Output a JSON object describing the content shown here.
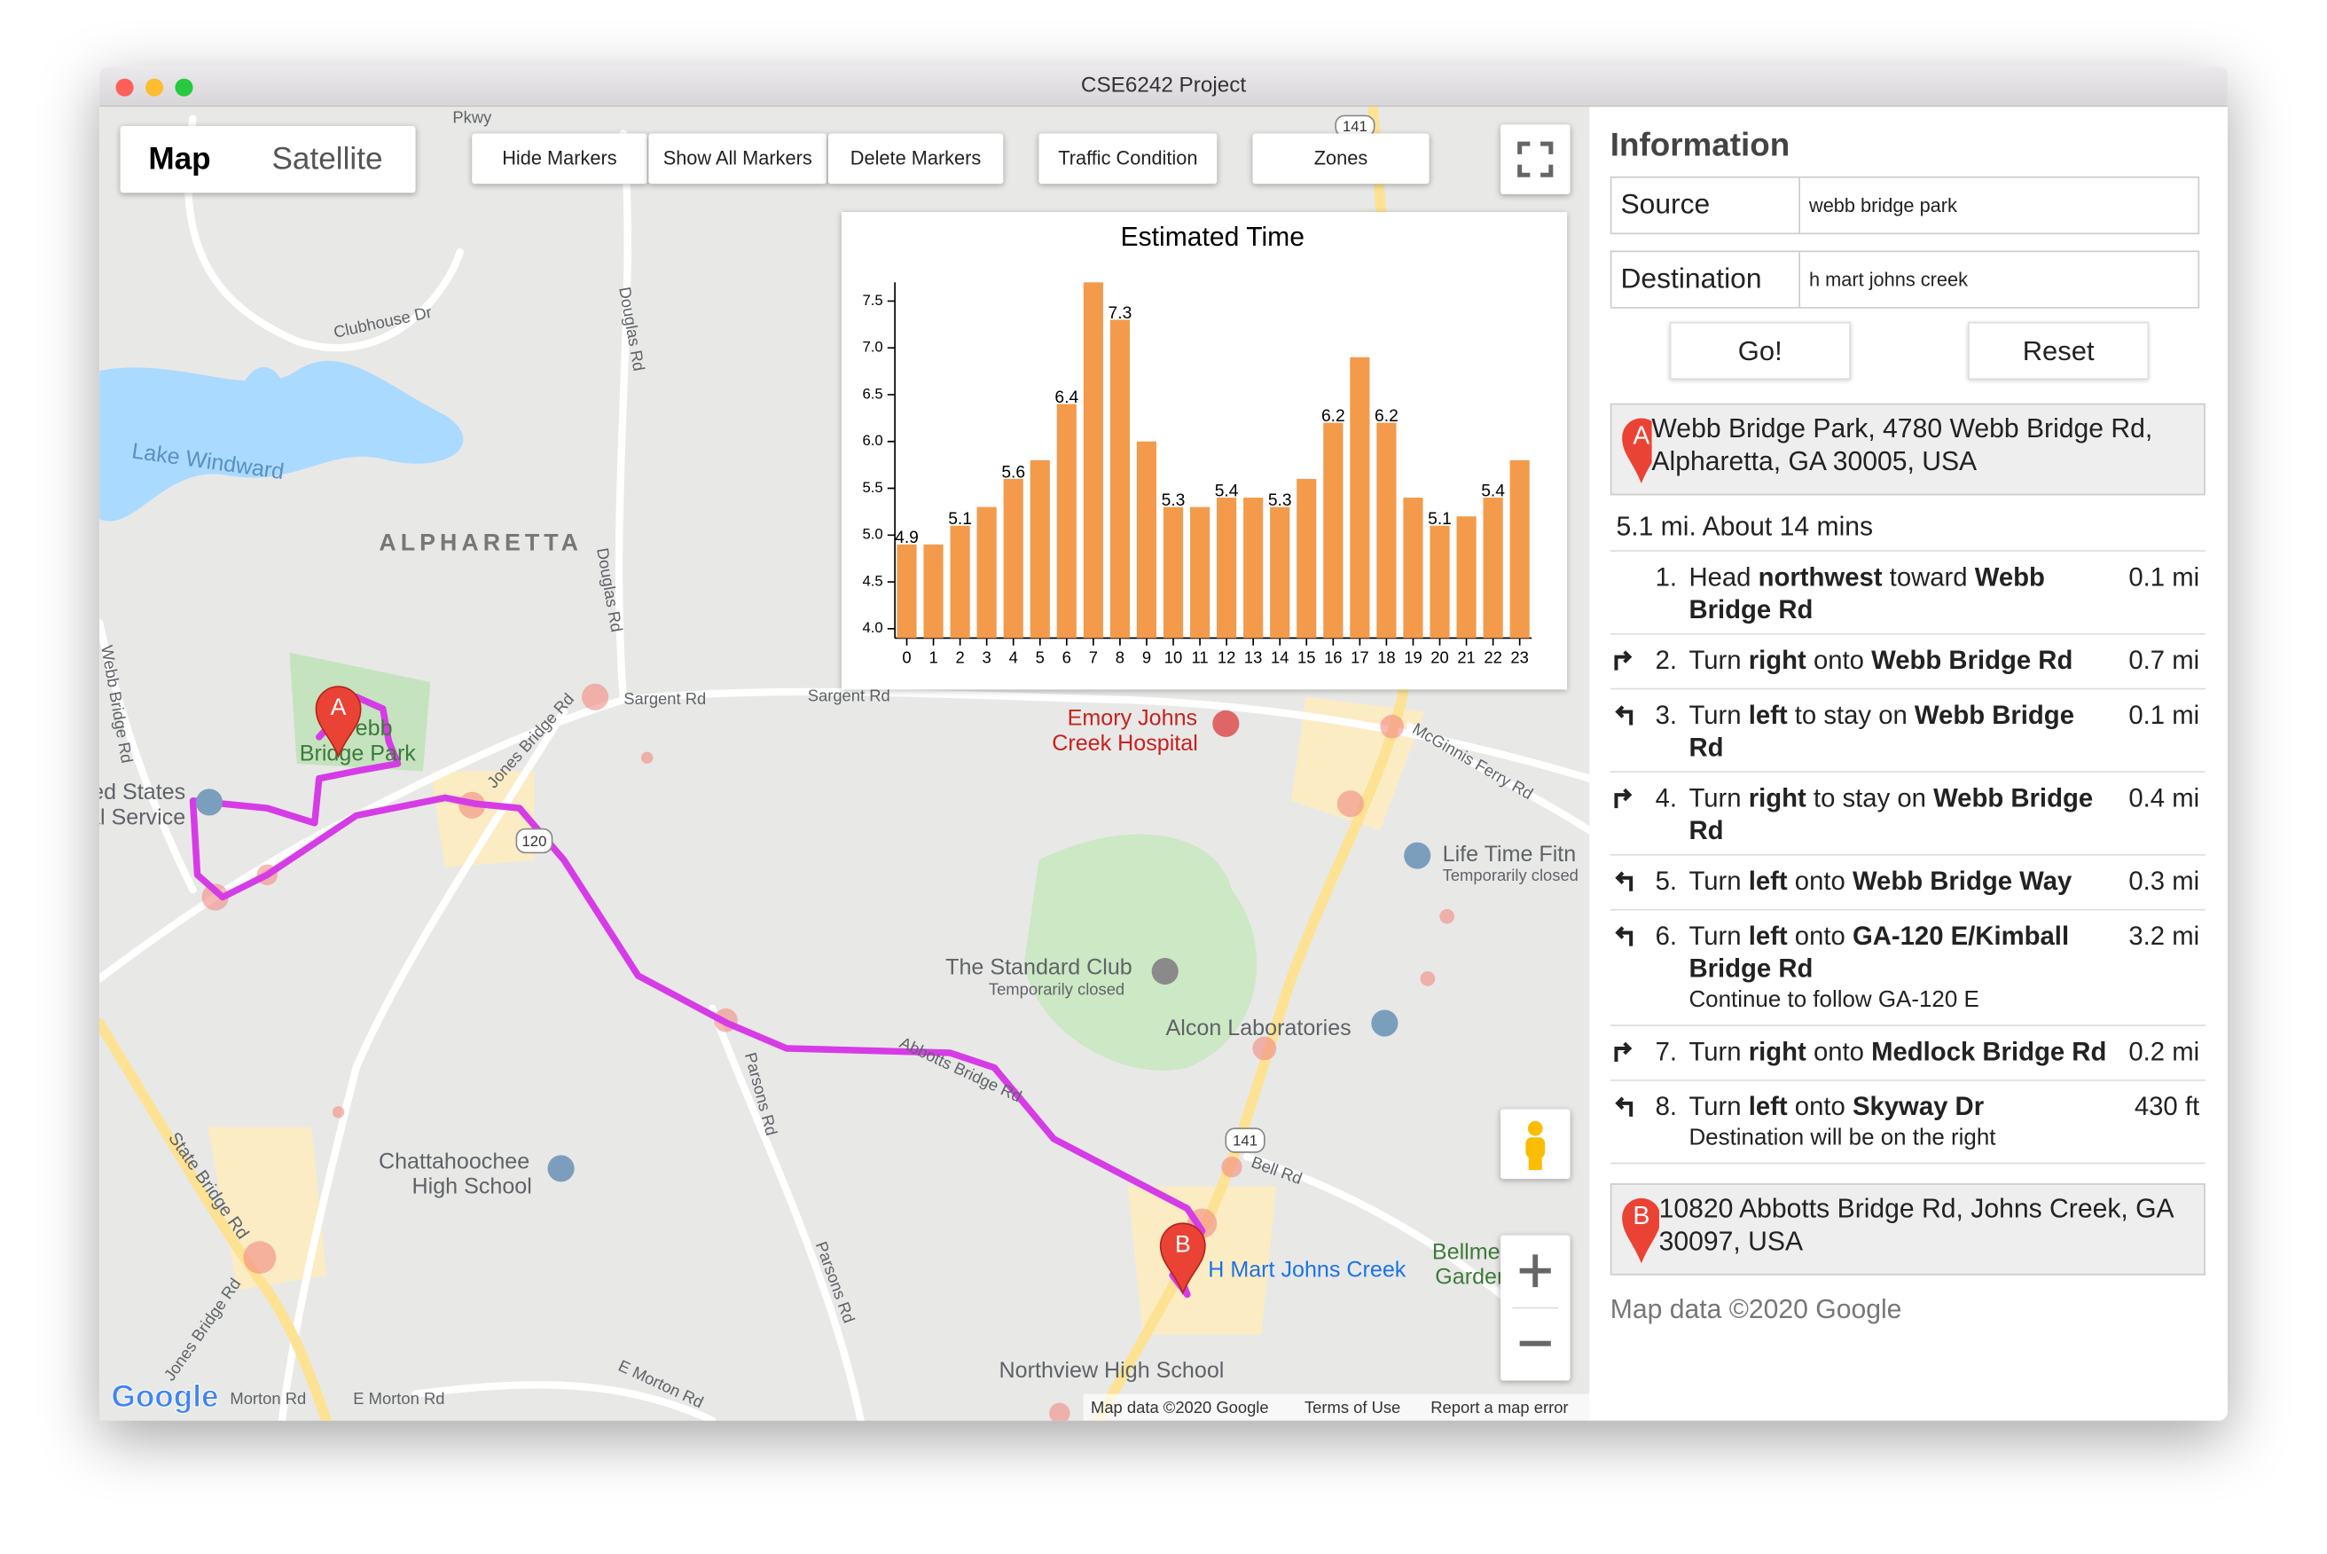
{
  "window": {
    "title": "CSE6242 Project"
  },
  "map_controls": {
    "map_type": [
      "Map",
      "Satellite"
    ],
    "buttons": [
      "Hide Markers",
      "Show All Markers",
      "Delete Markers",
      "Traffic Condition",
      "Zones"
    ]
  },
  "map": {
    "labels": [
      "Lake Windward",
      "ALPHARETTA",
      "Clubhouse Dr",
      "Sargent Rd",
      "Sargent Rd",
      "Douglas Rd",
      "Douglas Rd",
      "Jones Bridge Rd",
      "Webb Bridge Rd",
      "Emory Johns",
      "Creek Hospital",
      "McGinnis Ferry Rd",
      "Life Time Fitn",
      "Temporarily closed",
      "The Standard Club",
      "Temporarily closed",
      "Alcon Laboratories",
      "Chattahoochee",
      "High School",
      "Parsons Rd",
      "Parsons Rd",
      "Abbotts Bridge Rd",
      "Bell Rd",
      "H Mart Johns Creek",
      "Northview High School",
      "State Bridge Rd",
      "Jones Bridge Rd",
      "Morton Rd",
      "E Morton Rd",
      "E Morton Rd",
      "Webb",
      "Bridge Park",
      "United States",
      "Postal Service",
      "Bellmere",
      "Garden",
      "Pkwy"
    ],
    "shields": [
      "141",
      "120",
      "141"
    ],
    "markers": [
      "A",
      "B"
    ],
    "logo": "Google",
    "attribution": [
      "Map data ©2020 Google",
      "Terms of Use",
      "Report a map error"
    ]
  },
  "chart_data": {
    "type": "bar",
    "title": "Estimated Time",
    "categories": [
      "0",
      "1",
      "2",
      "3",
      "4",
      "5",
      "6",
      "7",
      "8",
      "9",
      "10",
      "11",
      "12",
      "13",
      "14",
      "15",
      "16",
      "17",
      "18",
      "19",
      "20",
      "21",
      "22",
      "23"
    ],
    "values": [
      4.9,
      4.9,
      5.1,
      5.3,
      5.6,
      5.8,
      6.4,
      7.7,
      7.3,
      6.0,
      5.3,
      5.3,
      5.4,
      5.4,
      5.3,
      5.6,
      6.2,
      6.9,
      6.2,
      5.4,
      5.1,
      5.2,
      5.4,
      5.8
    ],
    "value_labels": [
      "4.9",
      null,
      "5.1",
      null,
      "5.6",
      null,
      "6.4",
      null,
      "7.3",
      null,
      "5.3",
      null,
      "5.4",
      null,
      "5.3",
      null,
      "6.2",
      null,
      "6.2",
      null,
      "5.1",
      null,
      "5.4",
      null
    ],
    "color": "#f39a4b",
    "ylim": [
      3.9,
      7.7
    ],
    "yticks": [
      {
        "value": 4,
        "label": "4.0"
      },
      4.5,
      {
        "value": 5,
        "label": "5.0"
      },
      5.5,
      {
        "value": 6,
        "label": "6.0"
      },
      6.5,
      {
        "value": 7,
        "label": "7.0"
      },
      7.5
    ],
    "grid": false
  },
  "panel": {
    "title": "Information",
    "source": {
      "label": "Source",
      "value": "webb bridge park"
    },
    "destination": {
      "label": "Destination",
      "value": "h mart johns creek"
    },
    "buttons": [
      "Go!",
      "Reset"
    ],
    "start": {
      "marker": "A",
      "address": "Webb Bridge Park, 4780 Webb Bridge Rd, Alpharetta, GA 30005, USA"
    },
    "summary": "5.1 mi. About 14 mins",
    "steps": [
      {
        "icon": null,
        "num": "1.",
        "segments": [
          "Head ",
          "northwest",
          " toward ",
          "Webb Bridge Rd"
        ],
        "note": null,
        "distance": "0.1 mi"
      },
      {
        "icon": "right",
        "num": "2.",
        "segments": [
          "Turn ",
          "right",
          " onto ",
          "Webb Bridge Rd"
        ],
        "note": null,
        "distance": "0.7 mi"
      },
      {
        "icon": "left",
        "num": "3.",
        "segments": [
          "Turn ",
          "left",
          " to stay on ",
          "Webb Bridge Rd"
        ],
        "note": null,
        "distance": "0.1 mi"
      },
      {
        "icon": "right",
        "num": "4.",
        "segments": [
          "Turn ",
          "right",
          " to stay on ",
          "Webb Bridge Rd"
        ],
        "note": null,
        "distance": "0.4 mi"
      },
      {
        "icon": "left",
        "num": "5.",
        "segments": [
          "Turn ",
          "left",
          " onto ",
          "Webb Bridge Way"
        ],
        "note": null,
        "distance": "0.3 mi"
      },
      {
        "icon": "left",
        "num": "6.",
        "segments": [
          "Turn ",
          "left",
          " onto ",
          "GA-120 E/Kimball Bridge Rd"
        ],
        "note": "Continue to follow GA-120 E",
        "distance": "3.2 mi"
      },
      {
        "icon": "right",
        "num": "7.",
        "segments": [
          "Turn ",
          "right",
          " onto ",
          "Medlock Bridge Rd"
        ],
        "note": null,
        "distance": "0.2 mi"
      },
      {
        "icon": "left",
        "num": "8.",
        "segments": [
          "Turn ",
          "left",
          " onto ",
          "Skyway Dr"
        ],
        "note": "Destination will be on the right",
        "distance": "430 ft"
      }
    ],
    "end": {
      "marker": "B",
      "address": "10820 Abbotts Bridge Rd, Johns Creek, GA 30097, USA"
    },
    "copyright": "Map data ©2020 Google"
  }
}
